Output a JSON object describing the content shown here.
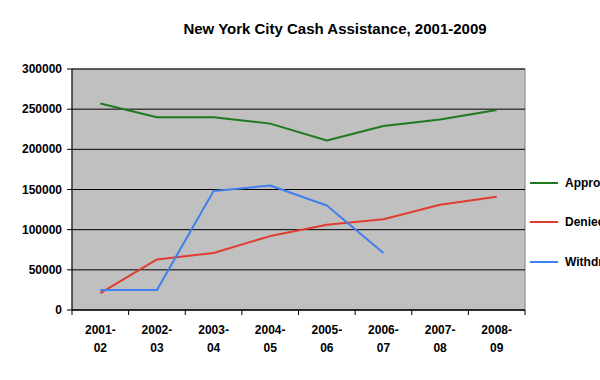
{
  "chart_data": {
    "type": "line",
    "title": "New York City Cash Assistance, 2001-2009",
    "categories": [
      "2001-02",
      "2002-03",
      "2003-04",
      "2004-05",
      "2005-06",
      "2006-07",
      "2007-08",
      "2008-09"
    ],
    "series": [
      {
        "name": "Approved",
        "color": "#1e7a1e",
        "values": [
          257000,
          240000,
          240000,
          232000,
          211000,
          229000,
          237000,
          249000
        ]
      },
      {
        "name": "Denied",
        "color": "#e03c31",
        "values": [
          21000,
          63000,
          71000,
          92000,
          106000,
          113000,
          131000,
          141000
        ]
      },
      {
        "name": "Withdrawn",
        "color": "#3f7fef",
        "values": [
          25000,
          25000,
          148000,
          155000,
          130000,
          71000,
          null,
          null
        ]
      }
    ],
    "ylim": [
      0,
      300000
    ],
    "yticks": [
      0,
      50000,
      100000,
      150000,
      200000,
      250000,
      300000
    ],
    "grid": true,
    "legend": "right"
  }
}
